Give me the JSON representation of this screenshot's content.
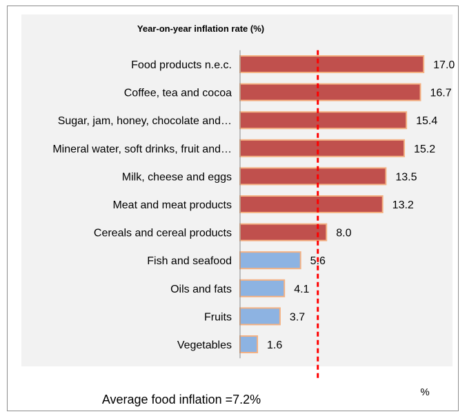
{
  "chart_data": {
    "type": "bar",
    "orientation": "horizontal",
    "title": "Year-on-year inflation rate (%)",
    "categories": [
      "Food products n.e.c.",
      "Coffee, tea and cocoa",
      "Sugar, jam, honey, chocolate and…",
      "Mineral water, soft drinks, fruit and…",
      "Milk, cheese and eggs",
      "Meat and meat products",
      "Cereals and cereal products",
      "Fish and seafood",
      "Oils and fats",
      "Fruits",
      "Vegetables"
    ],
    "values": [
      17.0,
      16.7,
      15.4,
      15.2,
      13.5,
      13.2,
      8.0,
      5.6,
      4.1,
      3.7,
      1.6
    ],
    "value_labels": [
      "17.0",
      "16.7",
      "15.4",
      "15.2",
      "13.5",
      "13.2",
      "8.0",
      "5.6",
      "4.1",
      "3.7",
      "1.6"
    ],
    "bar_colors": [
      "#c0504d",
      "#c0504d",
      "#c0504d",
      "#c0504d",
      "#c0504d",
      "#c0504d",
      "#c0504d",
      "#8db3e2",
      "#8db3e2",
      "#8db3e2",
      "#8db3e2"
    ],
    "bar_border_color": "#f4b183",
    "xlim": [
      0,
      17.5
    ],
    "unit_label": "%",
    "reference_line": {
      "value": 7.2,
      "style": "dashed",
      "color": "#ff0000",
      "label": "Average food inflation =7.2%"
    },
    "grid": false,
    "legend": "none"
  }
}
